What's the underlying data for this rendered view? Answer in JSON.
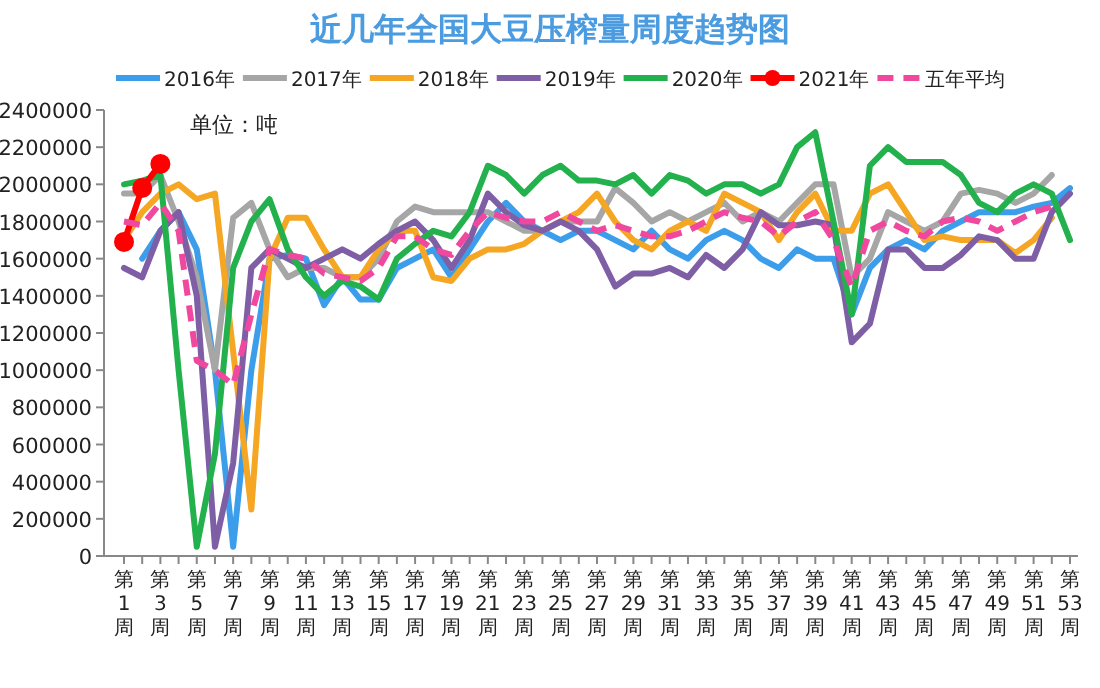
{
  "chart_data": {
    "type": "line",
    "title": "近几年全国大豆压榨量周度趋势图",
    "annotations": [
      "单位：吨"
    ],
    "legend": "top",
    "categories": [
      "第1周",
      null,
      "第3周",
      null,
      "第5周",
      null,
      "第7周",
      null,
      "第9周",
      null,
      "第11周",
      null,
      "第13周",
      null,
      "第15周",
      null,
      "第17周",
      null,
      "第19周",
      null,
      "第21周",
      null,
      "第23周",
      null,
      "第25周",
      null,
      "第27周",
      null,
      "第29周",
      null,
      "第31周",
      null,
      "第33周",
      null,
      "第35周",
      null,
      "第37周",
      null,
      "第39周",
      null,
      "第41周",
      null,
      "第43周",
      null,
      "第45周",
      null,
      "第47周",
      null,
      "第49周",
      null,
      "第51周",
      null,
      "第53周"
    ],
    "ylim": [
      0,
      2400000
    ],
    "yticks": [
      0,
      200000,
      400000,
      600000,
      800000,
      1000000,
      1200000,
      1400000,
      1600000,
      1800000,
      2000000,
      2200000,
      2400000
    ],
    "series": [
      {
        "name": "2016年",
        "color": "#3c9eea",
        "values": [
          null,
          1600000,
          1750000,
          1850000,
          1650000,
          1000000,
          50000,
          1000000,
          1600000,
          1620000,
          1600000,
          1350000,
          1500000,
          1380000,
          1380000,
          1550000,
          1600000,
          1650000,
          1500000,
          1650000,
          1800000,
          1900000,
          1800000,
          1750000,
          1700000,
          1750000,
          1750000,
          1700000,
          1650000,
          1750000,
          1650000,
          1600000,
          1700000,
          1750000,
          1700000,
          1600000,
          1550000,
          1650000,
          1600000,
          1600000,
          1300000,
          1550000,
          1650000,
          1700000,
          1650000,
          1750000,
          1800000,
          1850000,
          1850000,
          1850000,
          1880000,
          1900000,
          1980000
        ]
      },
      {
        "name": "2017年",
        "color": "#a6a6a6",
        "values": [
          1950000,
          1950000,
          2050000,
          1800000,
          1500000,
          1000000,
          1820000,
          1900000,
          1650000,
          1500000,
          1550000,
          1550000,
          1500000,
          1500000,
          1600000,
          1800000,
          1880000,
          1850000,
          1850000,
          1850000,
          1850000,
          1800000,
          1750000,
          1750000,
          1800000,
          1800000,
          1800000,
          1980000,
          1900000,
          1800000,
          1850000,
          1800000,
          1850000,
          1900000,
          1800000,
          1850000,
          1800000,
          1900000,
          2000000,
          2000000,
          1500000,
          1600000,
          1850000,
          1800000,
          1750000,
          1800000,
          1950000,
          1970000,
          1950000,
          1900000,
          1950000,
          2050000,
          null
        ]
      },
      {
        "name": "2018年",
        "color": "#f5a623",
        "values": [
          1700000,
          1850000,
          1950000,
          2000000,
          1920000,
          1950000,
          1100000,
          250000,
          1600000,
          1820000,
          1820000,
          1650000,
          1500000,
          1500000,
          1650000,
          1750000,
          1750000,
          1500000,
          1480000,
          1600000,
          1650000,
          1650000,
          1680000,
          1750000,
          1800000,
          1850000,
          1950000,
          1800000,
          1700000,
          1650000,
          1750000,
          1800000,
          1750000,
          1950000,
          1900000,
          1850000,
          1700000,
          1850000,
          1950000,
          1750000,
          1750000,
          1950000,
          2000000,
          1850000,
          1700000,
          1720000,
          1700000,
          1700000,
          1700000,
          1630000,
          1700000,
          1820000,
          null
        ]
      },
      {
        "name": "2019年",
        "color": "#7e5fa6",
        "values": [
          1550000,
          1500000,
          1750000,
          1850000,
          1400000,
          50000,
          500000,
          1550000,
          1650000,
          1600000,
          1550000,
          1600000,
          1650000,
          1600000,
          1680000,
          1750000,
          1800000,
          1700000,
          1550000,
          1700000,
          1950000,
          1850000,
          1780000,
          1750000,
          1800000,
          1750000,
          1650000,
          1450000,
          1520000,
          1520000,
          1550000,
          1500000,
          1620000,
          1550000,
          1650000,
          1850000,
          1780000,
          1780000,
          1800000,
          1780000,
          1150000,
          1250000,
          1650000,
          1650000,
          1550000,
          1550000,
          1620000,
          1720000,
          1700000,
          1600000,
          1600000,
          1850000,
          1950000
        ]
      },
      {
        "name": "2020年",
        "color": "#22b14c",
        "values": [
          2000000,
          2020000,
          2050000,
          1000000,
          50000,
          550000,
          1550000,
          1800000,
          1920000,
          1650000,
          1500000,
          1400000,
          1480000,
          1450000,
          1380000,
          1600000,
          1680000,
          1750000,
          1720000,
          1850000,
          2100000,
          2050000,
          1950000,
          2050000,
          2100000,
          2020000,
          2020000,
          2000000,
          2050000,
          1950000,
          2050000,
          2020000,
          1950000,
          2000000,
          2000000,
          1950000,
          2000000,
          2200000,
          2280000,
          1800000,
          1300000,
          2100000,
          2200000,
          2120000,
          2120000,
          2120000,
          2050000,
          1900000,
          1850000,
          1950000,
          2000000,
          1950000,
          1700000
        ]
      },
      {
        "name": "2021年",
        "color": "#ff0000",
        "marker": "circle",
        "values": [
          1690000,
          1980000,
          2110000,
          null,
          null,
          null,
          null,
          null,
          null,
          null,
          null,
          null,
          null,
          null,
          null,
          null,
          null,
          null,
          null,
          null,
          null,
          null,
          null,
          null,
          null,
          null,
          null,
          null,
          null,
          null,
          null,
          null,
          null,
          null,
          null,
          null,
          null,
          null,
          null,
          null,
          null,
          null,
          null,
          null,
          null,
          null,
          null,
          null,
          null,
          null,
          null,
          null,
          null
        ]
      },
      {
        "name": "五年平均",
        "color": "#f0489e",
        "line_style": "dashed",
        "values": [
          1800000,
          1780000,
          1900000,
          1750000,
          1050000,
          1000000,
          920000,
          1300000,
          1650000,
          1620000,
          1600000,
          1520000,
          1500000,
          1480000,
          1550000,
          1720000,
          1720000,
          1650000,
          1620000,
          1750000,
          1850000,
          1820000,
          1800000,
          1800000,
          1850000,
          1800000,
          1750000,
          1780000,
          1750000,
          1720000,
          1720000,
          1750000,
          1800000,
          1850000,
          1820000,
          1800000,
          1720000,
          1800000,
          1850000,
          1700000,
          1450000,
          1750000,
          1800000,
          1750000,
          1720000,
          1800000,
          1820000,
          1800000,
          1750000,
          1800000,
          1850000,
          1880000,
          null
        ]
      }
    ]
  }
}
